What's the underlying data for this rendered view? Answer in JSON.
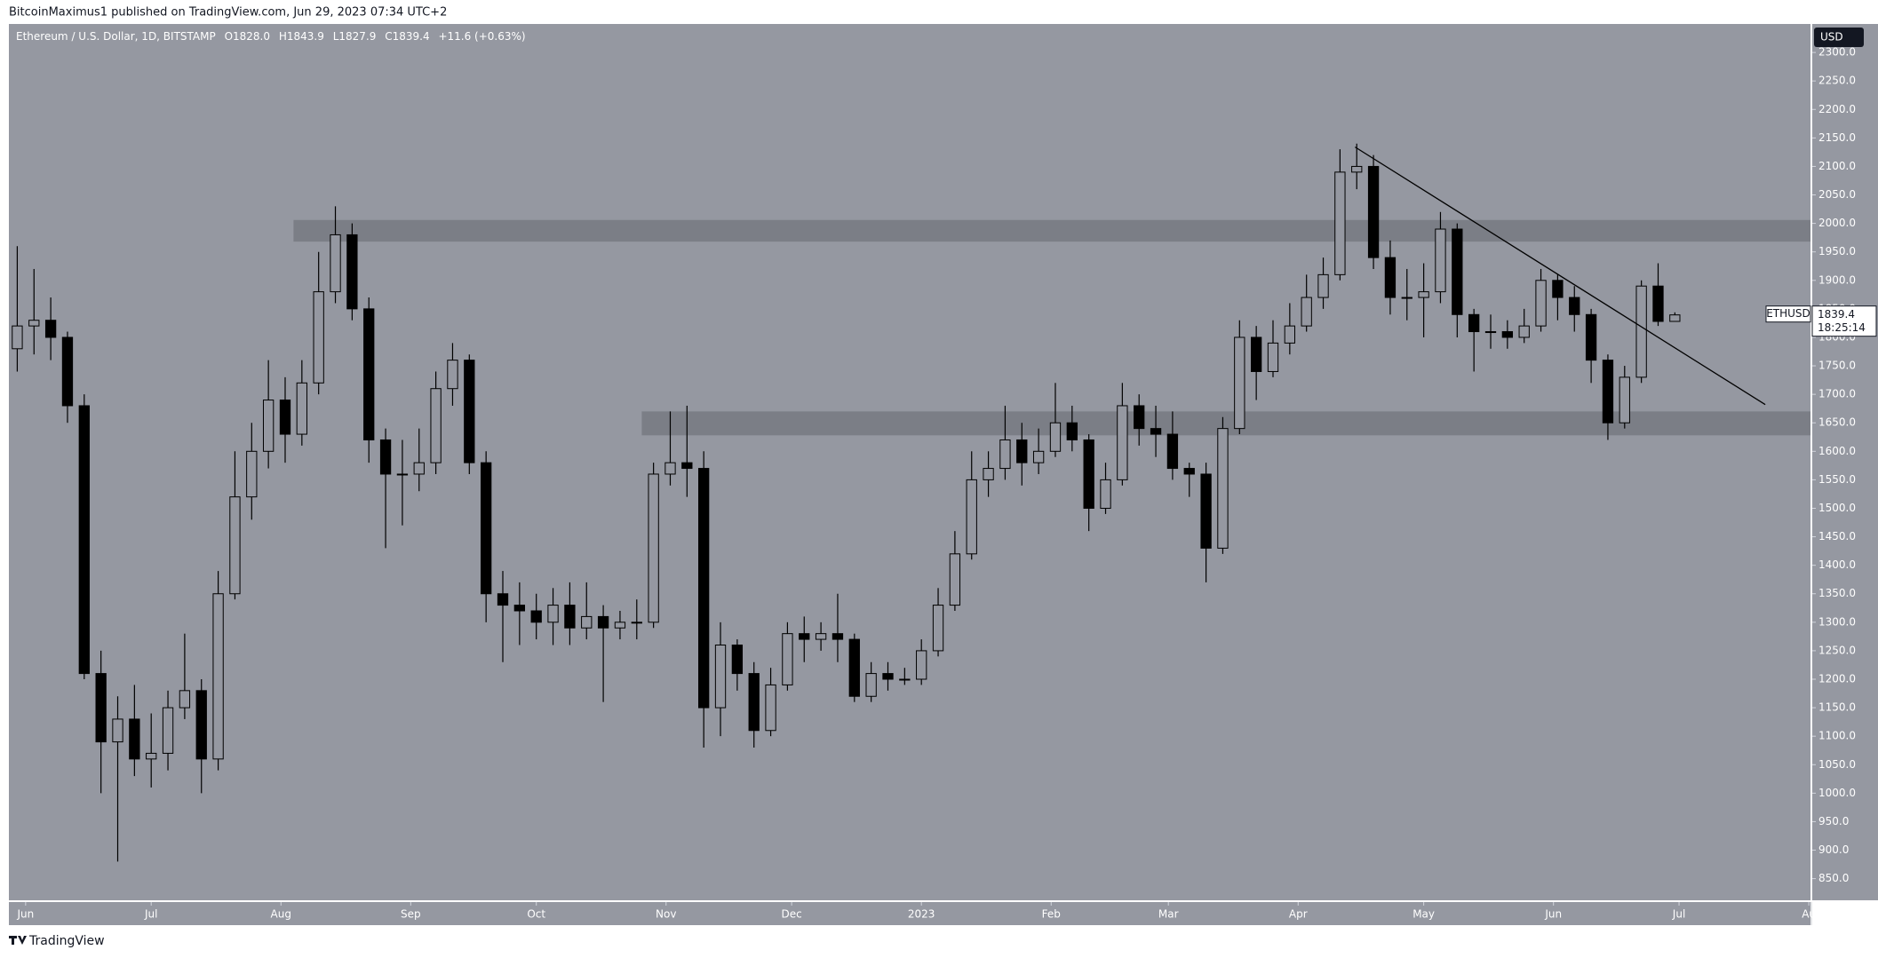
{
  "header": {
    "publisher": "BitcoinMaximus1 published on TradingView.com, Jun 29, 2023 07:34 UTC+2"
  },
  "footer": {
    "brand": "TradingView"
  },
  "chart_data": {
    "type": "candlestick",
    "title": "Ethereum / U.S. Dollar, 1D, BITSTAMP",
    "legend": {
      "o_label": "O",
      "open": "1828.0",
      "h_label": "H",
      "high": "1843.9",
      "l_label": "L",
      "low": "1827.9",
      "c_label": "C",
      "close": "1839.4",
      "change": "+11.6 (+0.63%)"
    },
    "currency": "USD",
    "price_tag": {
      "symbol": "ETHUSD",
      "price": "1839.4",
      "countdown": "18:25:14"
    },
    "up_color": "#9598a1",
    "down_color": "#000000",
    "background": "#9598a1",
    "zone_color": "#7b7e86",
    "line_color": "#000000",
    "open": [
      1780,
      1820,
      1830,
      1800,
      1680,
      1210,
      1090,
      1130,
      1060,
      1070,
      1150,
      1180,
      1060,
      1350,
      1520,
      1600,
      1690,
      1630,
      1720,
      1880,
      1980,
      1850,
      1620,
      1560,
      1560,
      1580,
      1710,
      1760,
      1580,
      1350,
      1330,
      1320,
      1300,
      1330,
      1290,
      1310,
      1290,
      1300,
      1300,
      1560,
      1580,
      1570,
      1150,
      1260,
      1210,
      1110,
      1190,
      1280,
      1270,
      1280,
      1270,
      1170,
      1210,
      1200,
      1200,
      1250,
      1330,
      1420,
      1550,
      1570,
      1620,
      1580,
      1600,
      1650,
      1620,
      1500,
      1550,
      1680,
      1640,
      1630,
      1570,
      1560,
      1430,
      1640,
      1800,
      1740,
      1790,
      1820,
      1870,
      1910,
      2090,
      2100,
      1940,
      1870,
      1870,
      1880,
      1990,
      1840,
      1810,
      1810,
      1800,
      1820,
      1900,
      1870,
      1840,
      1760,
      1650,
      1730,
      1890,
      1828
    ],
    "high": [
      1960,
      1920,
      1870,
      1810,
      1700,
      1250,
      1170,
      1190,
      1140,
      1180,
      1280,
      1200,
      1390,
      1600,
      1650,
      1760,
      1730,
      1760,
      1950,
      2030,
      2000,
      1870,
      1640,
      1620,
      1640,
      1740,
      1790,
      1770,
      1600,
      1390,
      1370,
      1350,
      1360,
      1370,
      1370,
      1330,
      1320,
      1340,
      1580,
      1670,
      1680,
      1600,
      1300,
      1270,
      1230,
      1220,
      1300,
      1310,
      1300,
      1350,
      1280,
      1230,
      1230,
      1220,
      1270,
      1360,
      1460,
      1600,
      1600,
      1680,
      1650,
      1640,
      1720,
      1680,
      1630,
      1580,
      1720,
      1700,
      1680,
      1670,
      1580,
      1580,
      1660,
      1830,
      1820,
      1830,
      1860,
      1910,
      1940,
      2130,
      2140,
      2120,
      1970,
      1920,
      1930,
      2020,
      2000,
      1850,
      1840,
      1830,
      1850,
      1920,
      1910,
      1890,
      1850,
      1770,
      1750,
      1900,
      1930,
      1843.9
    ],
    "low": [
      1740,
      1770,
      1760,
      1650,
      1200,
      1000,
      880,
      1030,
      1010,
      1040,
      1130,
      1000,
      1040,
      1340,
      1480,
      1570,
      1580,
      1610,
      1700,
      1860,
      1830,
      1580,
      1430,
      1470,
      1530,
      1560,
      1680,
      1560,
      1300,
      1230,
      1260,
      1270,
      1260,
      1260,
      1270,
      1160,
      1270,
      1270,
      1290,
      1540,
      1520,
      1080,
      1100,
      1180,
      1080,
      1100,
      1180,
      1230,
      1250,
      1230,
      1160,
      1160,
      1180,
      1190,
      1190,
      1240,
      1320,
      1410,
      1520,
      1550,
      1540,
      1560,
      1590,
      1600,
      1460,
      1490,
      1540,
      1610,
      1590,
      1550,
      1520,
      1370,
      1420,
      1630,
      1690,
      1730,
      1770,
      1810,
      1850,
      1900,
      2060,
      1920,
      1840,
      1830,
      1800,
      1860,
      1800,
      1740,
      1780,
      1780,
      1790,
      1810,
      1830,
      1810,
      1720,
      1620,
      1640,
      1720,
      1820,
      1827.9
    ],
    "close": [
      1820,
      1830,
      1800,
      1680,
      1210,
      1090,
      1130,
      1060,
      1070,
      1150,
      1180,
      1060,
      1350,
      1520,
      1600,
      1690,
      1630,
      1720,
      1880,
      1980,
      1850,
      1620,
      1560,
      1560,
      1580,
      1710,
      1760,
      1580,
      1350,
      1330,
      1320,
      1300,
      1330,
      1290,
      1310,
      1290,
      1300,
      1300,
      1560,
      1580,
      1570,
      1150,
      1260,
      1210,
      1110,
      1190,
      1280,
      1270,
      1280,
      1270,
      1170,
      1210,
      1200,
      1200,
      1250,
      1330,
      1420,
      1550,
      1570,
      1620,
      1580,
      1600,
      1650,
      1620,
      1500,
      1550,
      1680,
      1640,
      1630,
      1570,
      1560,
      1430,
      1640,
      1800,
      1740,
      1790,
      1820,
      1870,
      1910,
      2090,
      2100,
      1940,
      1870,
      1870,
      1880,
      1990,
      1840,
      1810,
      1810,
      1800,
      1820,
      1900,
      1870,
      1840,
      1760,
      1650,
      1730,
      1890,
      1828,
      1839.4
    ],
    "xlim": [
      -0.5,
      107.1
    ],
    "xticks": [
      {
        "value": 0.5,
        "label": "Jun"
      },
      {
        "value": 8,
        "label": "Jul"
      },
      {
        "value": 15.75,
        "label": "Aug"
      },
      {
        "value": 23.5,
        "label": "Sep"
      },
      {
        "value": 31,
        "label": "Oct"
      },
      {
        "value": 38.75,
        "label": "Nov"
      },
      {
        "value": 46.25,
        "label": "Dec"
      },
      {
        "value": 54,
        "label": "2023"
      },
      {
        "value": 61.75,
        "label": "Feb"
      },
      {
        "value": 68.75,
        "label": "Mar"
      },
      {
        "value": 76.5,
        "label": "Apr"
      },
      {
        "value": 84,
        "label": "May"
      },
      {
        "value": 91.75,
        "label": "Jun"
      },
      {
        "value": 99.25,
        "label": "Jul"
      },
      {
        "value": 107,
        "label": "Au"
      }
    ],
    "ylim": [
      812,
      2350
    ],
    "yticks": [
      {
        "value": 850,
        "label": "850.0"
      },
      {
        "value": 900,
        "label": "900.0"
      },
      {
        "value": 950,
        "label": "950.0"
      },
      {
        "value": 1000,
        "label": "1000.0"
      },
      {
        "value": 1050,
        "label": "1050.0"
      },
      {
        "value": 1100,
        "label": "1100.0"
      },
      {
        "value": 1150,
        "label": "1150.0"
      },
      {
        "value": 1200,
        "label": "1200.0"
      },
      {
        "value": 1250,
        "label": "1250.0"
      },
      {
        "value": 1300,
        "label": "1300.0"
      },
      {
        "value": 1350,
        "label": "1350.0"
      },
      {
        "value": 1400,
        "label": "1400.0"
      },
      {
        "value": 1450,
        "label": "1450.0"
      },
      {
        "value": 1500,
        "label": "1500.0"
      },
      {
        "value": 1550,
        "label": "1550.0"
      },
      {
        "value": 1600,
        "label": "1600.0"
      },
      {
        "value": 1650,
        "label": "1650.0"
      },
      {
        "value": 1700,
        "label": "1700.0"
      },
      {
        "value": 1750,
        "label": "1750.0"
      },
      {
        "value": 1800,
        "label": "1800.0"
      },
      {
        "value": 1850,
        "label": "1850.0"
      },
      {
        "value": 1900,
        "label": "1900.0"
      },
      {
        "value": 1950,
        "label": "1950.0"
      },
      {
        "value": 2000,
        "label": "2000.0"
      },
      {
        "value": 2050,
        "label": "2050.0"
      },
      {
        "value": 2100,
        "label": "2100.0"
      },
      {
        "value": 2150,
        "label": "2150.0"
      },
      {
        "value": 2200,
        "label": "2200.0"
      },
      {
        "value": 2250,
        "label": "2250.0"
      },
      {
        "value": 2300,
        "label": "2300.0"
      }
    ],
    "grid": false,
    "zones": [
      {
        "from": 1968,
        "to": 2006,
        "start": 16.5
      },
      {
        "from": 1628,
        "to": 1670,
        "start": 37.3
      }
    ],
    "trendline": {
      "x": [
        79.9,
        104.4
      ],
      "y": [
        2134,
        1682
      ]
    }
  }
}
